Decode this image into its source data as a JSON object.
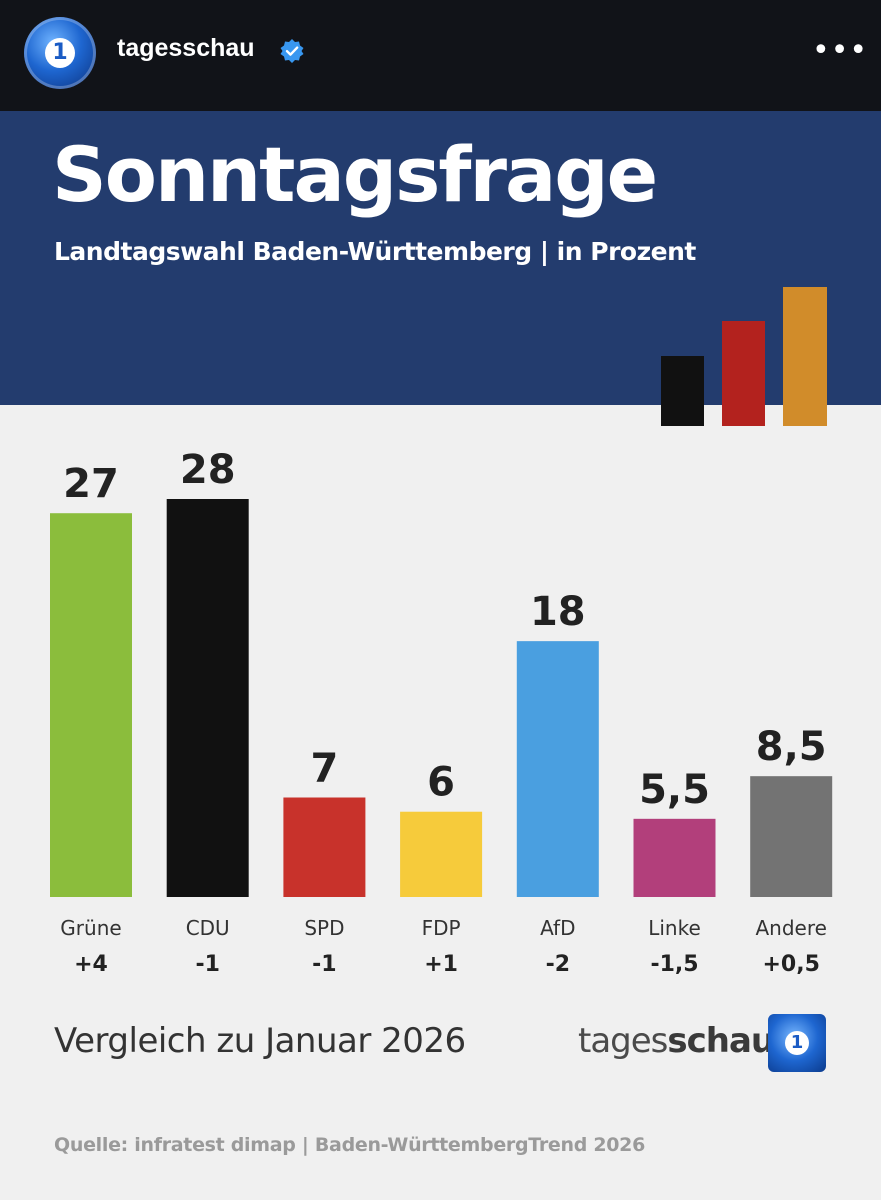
{
  "app": {
    "account_name": "tagesschau",
    "more_label": "•••"
  },
  "header": {
    "title": "Sonntagsfrage",
    "subtitle": "Landtagswahl Baden-Württemberg | in Prozent",
    "accent_colors": [
      "#111111",
      "#b3221e",
      "#d18c2a"
    ]
  },
  "chart_data": {
    "type": "bar",
    "title": "Sonntagsfrage",
    "subtitle": "Landtagswahl Baden-Württemberg | in Prozent",
    "ylim": [
      0,
      28
    ],
    "grid": false,
    "categories": [
      "Grüne",
      "CDU",
      "SPD",
      "FDP",
      "AfD",
      "Linke",
      "Andere"
    ],
    "values": [
      27,
      28,
      7,
      6,
      18,
      5.5,
      8.5
    ],
    "value_labels": [
      "27",
      "28",
      "7",
      "6",
      "18",
      "5,5",
      "8,5"
    ],
    "changes": [
      "+4",
      "-1",
      "-1",
      "+1",
      "-2",
      "-1,5",
      "+0,5"
    ],
    "colors": [
      "#8bbd3c",
      "#111111",
      "#c8322b",
      "#f6cb3b",
      "#4a9fe0",
      "#b23f7b",
      "#737373"
    ]
  },
  "footer": {
    "comparison": "Vergleich zu Januar 2026",
    "brand_regular": "tages",
    "brand_bold": "schau",
    "source": "Quelle: infratest dimap | Baden-WürttembergTrend 2026"
  }
}
